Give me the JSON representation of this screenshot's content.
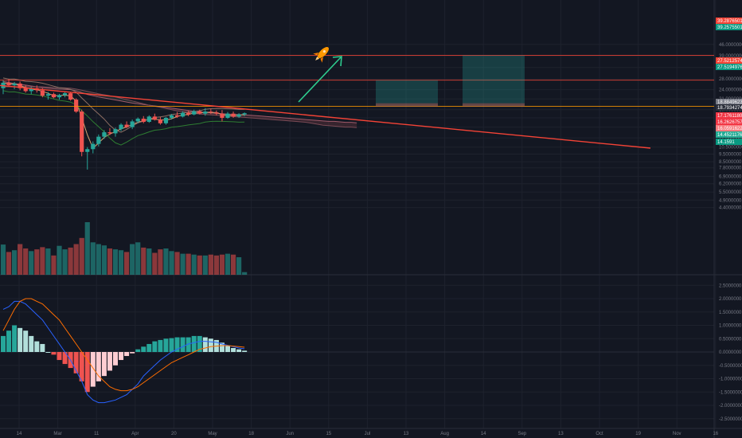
{
  "chart_data": [
    {
      "type": "candlestick",
      "yscale": "log",
      "ylim": [
        9.0,
        46.0
      ],
      "price_ticks": [
        "46.0000000",
        "39.0000000",
        "33.0000000",
        "28.0000000",
        "24.0000000",
        "21.0000000",
        "18.0000000",
        "16.0000000",
        "14.0000000",
        "12.0000000",
        "10.5000000",
        "9.5000000",
        "8.5000000",
        "7.8000000",
        "6.9000000",
        "6.2000000",
        "5.5000000",
        "4.9000000",
        "4.4000000"
      ],
      "x_ticks": [
        "14",
        "Mar",
        "11",
        "Apr",
        "20",
        "May",
        "18",
        "Jun",
        "15",
        "Jul",
        "13",
        "Aug",
        "14",
        "Sep",
        "13",
        "Oct",
        "19",
        "Nov",
        "16"
      ],
      "candles": [
        {
          "o": 24.5,
          "h": 27.5,
          "l": 22.5,
          "c": 26.5
        },
        {
          "o": 26.5,
          "h": 28.0,
          "l": 25.0,
          "c": 25.6
        },
        {
          "o": 25.6,
          "h": 26.8,
          "l": 24.2,
          "c": 26.2
        },
        {
          "o": 26.2,
          "h": 27.0,
          "l": 23.8,
          "c": 24.5
        },
        {
          "o": 24.5,
          "h": 25.5,
          "l": 23.0,
          "c": 23.5
        },
        {
          "o": 23.5,
          "h": 25.0,
          "l": 22.5,
          "c": 24.5
        },
        {
          "o": 24.5,
          "h": 25.5,
          "l": 23.0,
          "c": 23.8
        },
        {
          "o": 23.8,
          "h": 24.5,
          "l": 21.5,
          "c": 22.0
        },
        {
          "o": 22.0,
          "h": 23.2,
          "l": 20.8,
          "c": 22.5
        },
        {
          "o": 22.5,
          "h": 23.0,
          "l": 21.2,
          "c": 21.5
        },
        {
          "o": 21.5,
          "h": 22.6,
          "l": 20.8,
          "c": 22.2
        },
        {
          "o": 22.2,
          "h": 23.4,
          "l": 21.5,
          "c": 22.8
        },
        {
          "o": 22.8,
          "h": 23.2,
          "l": 20.5,
          "c": 20.8
        },
        {
          "o": 20.8,
          "h": 21.2,
          "l": 17.2,
          "c": 17.5
        },
        {
          "o": 17.5,
          "h": 18.0,
          "l": 9.2,
          "c": 9.8
        },
        {
          "o": 9.8,
          "h": 10.5,
          "l": 7.6,
          "c": 10.2
        },
        {
          "o": 10.2,
          "h": 11.4,
          "l": 9.6,
          "c": 11.0
        },
        {
          "o": 11.0,
          "h": 12.6,
          "l": 10.6,
          "c": 12.2
        },
        {
          "o": 12.2,
          "h": 13.4,
          "l": 11.8,
          "c": 13.0
        },
        {
          "o": 13.0,
          "h": 13.8,
          "l": 12.5,
          "c": 12.8
        },
        {
          "o": 12.8,
          "h": 13.9,
          "l": 12.2,
          "c": 13.6
        },
        {
          "o": 13.6,
          "h": 14.8,
          "l": 13.2,
          "c": 14.5
        },
        {
          "o": 14.5,
          "h": 15.2,
          "l": 13.8,
          "c": 14.0
        },
        {
          "o": 14.0,
          "h": 15.6,
          "l": 13.6,
          "c": 15.2
        },
        {
          "o": 15.2,
          "h": 16.1,
          "l": 14.8,
          "c": 15.8
        },
        {
          "o": 15.8,
          "h": 16.4,
          "l": 14.8,
          "c": 15.1
        },
        {
          "o": 15.1,
          "h": 16.6,
          "l": 14.9,
          "c": 16.3
        },
        {
          "o": 16.3,
          "h": 17.0,
          "l": 15.4,
          "c": 15.6
        },
        {
          "o": 15.6,
          "h": 16.2,
          "l": 14.5,
          "c": 14.8
        },
        {
          "o": 14.8,
          "h": 16.2,
          "l": 14.5,
          "c": 16.0
        },
        {
          "o": 16.0,
          "h": 16.9,
          "l": 15.6,
          "c": 16.6
        },
        {
          "o": 16.6,
          "h": 17.4,
          "l": 16.0,
          "c": 16.3
        },
        {
          "o": 16.3,
          "h": 17.6,
          "l": 16.1,
          "c": 17.2
        },
        {
          "o": 17.2,
          "h": 17.7,
          "l": 16.4,
          "c": 16.8
        },
        {
          "o": 16.8,
          "h": 18.0,
          "l": 16.6,
          "c": 17.6
        },
        {
          "o": 17.6,
          "h": 18.0,
          "l": 16.8,
          "c": 17.0
        },
        {
          "o": 17.0,
          "h": 18.4,
          "l": 16.5,
          "c": 17.5
        },
        {
          "o": 17.5,
          "h": 18.2,
          "l": 16.9,
          "c": 17.3
        },
        {
          "o": 17.3,
          "h": 17.8,
          "l": 16.6,
          "c": 17.0
        },
        {
          "o": 17.0,
          "h": 17.9,
          "l": 15.2,
          "c": 16.0
        },
        {
          "o": 16.0,
          "h": 17.4,
          "l": 15.8,
          "c": 17.0
        },
        {
          "o": 17.0,
          "h": 17.5,
          "l": 16.0,
          "c": 16.3
        },
        {
          "o": 16.3,
          "h": 17.1,
          "l": 16.0,
          "c": 16.8
        },
        {
          "o": 16.8,
          "h": 17.3,
          "l": 16.4,
          "c": 17.1
        }
      ],
      "volume": [
        6.9,
        5.2,
        5.6,
        7.0,
        6.0,
        5.4,
        5.8,
        6.3,
        6.0,
        4.4,
        6.6,
        5.8,
        6.2,
        7.0,
        8.4,
        12.0,
        7.4,
        7.0,
        6.7,
        6.0,
        5.8,
        5.6,
        5.2,
        7.0,
        7.4,
        6.2,
        6.0,
        5.0,
        5.8,
        6.0,
        5.4,
        5.2,
        4.8,
        4.8,
        4.6,
        4.4,
        4.4,
        4.6,
        4.4,
        4.6,
        4.8,
        4.6,
        4.0,
        0.6
      ],
      "price_tags": [
        {
          "value": "39.2876501",
          "color": "#f44336"
        },
        {
          "value": "39.2575501",
          "color": "#089981"
        },
        {
          "value": "27.5212574",
          "color": "#f44336"
        },
        {
          "value": "27.5194976",
          "color": "#089981"
        },
        {
          "value": "18.8849623",
          "color": "#787b86"
        },
        {
          "value": "18.7934274",
          "color": "#2a2e39"
        },
        {
          "value": "17.1761180",
          "color": "#f23645"
        },
        {
          "value": "16.2626757",
          "color": "#f23645"
        },
        {
          "value": "16.0591622",
          "color": "#f77c80"
        },
        {
          "value": "14.4521176",
          "color": "#22ab94"
        },
        {
          "value": "14.1591",
          "color": "#089981"
        }
      ],
      "horizontal_lines": [
        39.2876501,
        27.5212574,
        18.8849623
      ],
      "ichimoku": {
        "span_a": [
          27,
          26.6,
          26.2,
          25.9,
          25.6,
          25.3,
          25.0,
          24.7,
          24.5,
          24.3,
          24.2,
          24.1,
          24.0,
          23.6,
          23.0,
          22.4,
          22.0,
          21.6,
          21.3,
          21.0,
          20.7,
          20.4,
          20.1,
          19.8,
          19.6,
          19.4,
          19.2,
          19.0,
          18.8,
          18.6,
          18.4,
          18.2,
          18.0,
          17.8,
          17.6,
          17.4,
          17.3,
          17.2,
          17.1,
          17.0,
          16.9,
          16.8,
          16.8,
          16.7,
          16.6,
          16.5,
          16.4,
          16.3,
          16.2,
          16.1,
          16.0,
          15.9,
          15.8,
          15.7,
          15.6,
          15.5,
          15.4,
          15.3,
          15.2,
          15.2,
          15.1,
          15.0,
          15.0,
          14.9
        ],
        "span_b": [
          25,
          25.0,
          25.0,
          25.0,
          25.0,
          25.0,
          25.0,
          25.0,
          24.9,
          24.8,
          24.7,
          24.6,
          24.5,
          24.2,
          23.8,
          23.4,
          23.0,
          22.6,
          22.3,
          22.0,
          21.6,
          21.2,
          20.8,
          20.4,
          20.0,
          19.6,
          19.2,
          18.9,
          18.6,
          18.3,
          18.0,
          17.7,
          17.5,
          17.3,
          17.1,
          16.9,
          16.8,
          16.7,
          16.6,
          16.5,
          16.4,
          16.3,
          16.2,
          16.1,
          16.0,
          15.9,
          15.8,
          15.7,
          15.6,
          15.5,
          15.4,
          15.3,
          15.2,
          15.1,
          15.0,
          14.8,
          14.6,
          14.4,
          14.3,
          14.2,
          14.1,
          14.0,
          14.0,
          13.9
        ]
      },
      "annotations": [
        {
          "type": "trendline",
          "color": "#f44336"
        },
        {
          "type": "horizontal_line",
          "value": 39.2876501,
          "color": "#f44336"
        },
        {
          "type": "horizontal_line",
          "value": 27.5212574,
          "color": "#f44336"
        },
        {
          "type": "horizontal_line",
          "value": 18.8849623,
          "color": "#ff9800"
        },
        {
          "type": "arrow",
          "color": "#26c6da"
        },
        {
          "type": "emoji",
          "name": "rocket-icon"
        },
        {
          "type": "target_zone",
          "color": "#26a69a"
        },
        {
          "type": "target_zone",
          "color": "#26a69a"
        }
      ]
    },
    {
      "type": "macd",
      "ylim": [
        -2.6,
        2.6
      ],
      "y_ticks": [
        "2.5000000",
        "2.0000000",
        "1.5000000",
        "1.0000000",
        "0.5000000",
        "0.0000000",
        "-0.5000000",
        "-1.0000000",
        "-1.5000000",
        "-2.0000000",
        "-2.5000000"
      ],
      "histogram": [
        0.6,
        0.8,
        1.0,
        0.9,
        0.8,
        0.6,
        0.4,
        0.3,
        0.0,
        -0.1,
        -0.3,
        -0.45,
        -0.6,
        -0.8,
        -1.1,
        -1.5,
        -1.3,
        -1.1,
        -0.9,
        -0.7,
        -0.5,
        -0.3,
        -0.15,
        -0.05,
        0.1,
        0.2,
        0.3,
        0.4,
        0.45,
        0.5,
        0.52,
        0.55,
        0.55,
        0.55,
        0.6,
        0.6,
        0.55,
        0.5,
        0.45,
        0.35,
        0.25,
        0.15,
        0.1,
        0.05
      ],
      "macd_line": [
        1.6,
        1.7,
        1.9,
        1.9,
        1.8,
        1.6,
        1.4,
        1.2,
        0.9,
        0.6,
        0.3,
        0.0,
        -0.3,
        -0.7,
        -1.1,
        -1.6,
        -1.8,
        -1.9,
        -1.9,
        -1.85,
        -1.8,
        -1.7,
        -1.6,
        -1.4,
        -1.2,
        -0.9,
        -0.7,
        -0.5,
        -0.3,
        -0.15,
        0.0,
        0.1,
        0.2,
        0.3,
        0.35,
        0.4,
        0.4,
        0.38,
        0.36,
        0.3,
        0.25,
        0.2,
        0.15,
        0.12
      ],
      "signal_line": [
        0.8,
        1.2,
        1.6,
        1.9,
        2.0,
        2.0,
        1.9,
        1.8,
        1.6,
        1.4,
        1.2,
        0.9,
        0.6,
        0.3,
        0.0,
        -0.3,
        -0.6,
        -0.9,
        -1.1,
        -1.3,
        -1.4,
        -1.45,
        -1.45,
        -1.4,
        -1.3,
        -1.15,
        -1.0,
        -0.85,
        -0.7,
        -0.55,
        -0.4,
        -0.3,
        -0.2,
        -0.1,
        0.0,
        0.1,
        0.15,
        0.2,
        0.22,
        0.24,
        0.24,
        0.22,
        0.2,
        0.18
      ]
    }
  ]
}
